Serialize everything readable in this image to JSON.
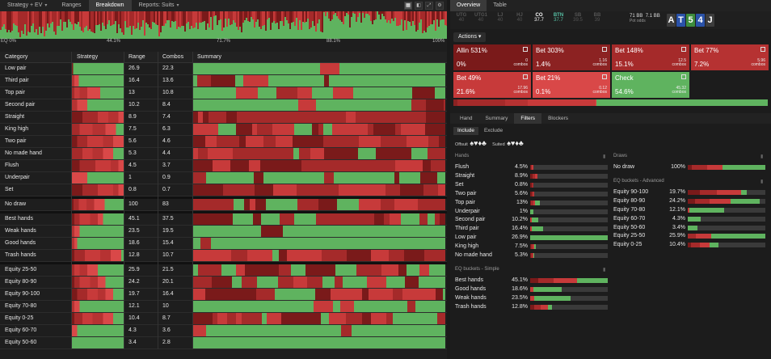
{
  "colors": {
    "allin": "#7a1a1a",
    "bet_big": "#a52a2a",
    "bet_mid": "#c73a3a",
    "bet_small": "#d94848",
    "check": "#5fb35f",
    "btn_teal": "#58c3a8",
    "card_ace": "#3c3c3c",
    "card_ten": "#2a52a8",
    "card_five": "#3d8c3d",
    "card_four": "#2a52a8",
    "card_jack": "#3c3c3c"
  },
  "top_tabs": [
    {
      "label": "Strategy + EV",
      "has_caret": true,
      "icon": "chevron-down-icon"
    },
    {
      "label": "Ranges"
    },
    {
      "label": "Breakdown",
      "active": true
    },
    {
      "label": "Reports: Suits",
      "has_caret": true,
      "icon": "chevron-down-icon"
    }
  ],
  "view_icons": [
    "grid-view-icon",
    "split-view-icon",
    "fullscreen-icon",
    "settings-icon"
  ],
  "equity_axis": [
    "EQ 0%",
    "44.1%",
    "71.7%",
    "88.1%",
    "100%"
  ],
  "table": {
    "headers": {
      "category": "Category",
      "strategy": "Strategy",
      "range": "Range %",
      "combos": "Combos",
      "summary": "Summary"
    },
    "groups": [
      [
        {
          "category": "Low pair",
          "range": "26.9",
          "combos": "22.3",
          "mix": [
            0.02,
            0,
            0,
            0,
            0,
            0.98
          ]
        },
        {
          "category": "Third pair",
          "range": "16.4",
          "combos": "13.6",
          "mix": [
            0,
            0,
            0,
            0.05,
            0.08,
            0.87
          ]
        },
        {
          "category": "Top pair",
          "range": "13",
          "combos": "10.8",
          "mix": [
            0,
            0.05,
            0.1,
            0.15,
            0.25,
            0.45
          ]
        },
        {
          "category": "Second pair",
          "range": "10.2",
          "combos": "8.4",
          "mix": [
            0,
            0,
            0,
            0.1,
            0.2,
            0.7
          ]
        },
        {
          "category": "Straight",
          "range": "8.9",
          "combos": "7.4",
          "mix": [
            0.2,
            0.3,
            0.2,
            0.2,
            0.1,
            0
          ]
        },
        {
          "category": "King high",
          "range": "7.5",
          "combos": "6.3",
          "mix": [
            0,
            0.15,
            0.25,
            0.25,
            0.2,
            0.15
          ]
        },
        {
          "category": "Two pair",
          "range": "5.6",
          "combos": "4.6",
          "mix": [
            0.1,
            0.2,
            0.3,
            0.2,
            0.2,
            0
          ]
        },
        {
          "category": "No made hand",
          "range": "5.3",
          "combos": "4.4",
          "mix": [
            0,
            0.2,
            0.2,
            0.2,
            0.2,
            0.2
          ]
        },
        {
          "category": "Flush",
          "range": "4.5",
          "combos": "3.7",
          "mix": [
            0.15,
            0.3,
            0.3,
            0.15,
            0.1,
            0
          ]
        },
        {
          "category": "Underpair",
          "range": "1",
          "combos": "0.9",
          "mix": [
            0,
            0,
            0,
            0,
            0.3,
            0.7
          ]
        },
        {
          "category": "Set",
          "range": "0.8",
          "combos": "0.7",
          "mix": [
            0.2,
            0.3,
            0.3,
            0.1,
            0.1,
            0
          ]
        }
      ],
      [
        {
          "category": "No draw",
          "range": "100",
          "combos": "83",
          "mix": [
            0.03,
            0.1,
            0.15,
            0.15,
            0.2,
            0.37
          ]
        }
      ],
      [
        {
          "category": "Best hands",
          "range": "45.1",
          "combos": "37.5",
          "mix": [
            0.05,
            0.1,
            0.2,
            0.15,
            0.1,
            0.4
          ]
        },
        {
          "category": "Weak hands",
          "range": "23.5",
          "combos": "19.5",
          "mix": [
            0,
            0,
            0,
            0.05,
            0.1,
            0.85
          ]
        },
        {
          "category": "Good hands",
          "range": "18.6",
          "combos": "15.4",
          "mix": [
            0,
            0,
            0,
            0.05,
            0.05,
            0.9
          ]
        },
        {
          "category": "Trash hands",
          "range": "12.8",
          "combos": "10.7",
          "mix": [
            0.05,
            0.2,
            0.3,
            0.2,
            0.2,
            0.05
          ]
        }
      ],
      [
        {
          "category": "Equity 25-50",
          "range": "25.9",
          "combos": "21.5",
          "mix": [
            0,
            0.05,
            0.1,
            0.15,
            0.2,
            0.5
          ]
        },
        {
          "category": "Equity 80-90",
          "range": "24.2",
          "combos": "20.1",
          "mix": [
            0.05,
            0.1,
            0.2,
            0.15,
            0.15,
            0.35
          ]
        },
        {
          "category": "Equity 90-100",
          "range": "19.7",
          "combos": "16.4",
          "mix": [
            0.1,
            0.2,
            0.2,
            0.15,
            0.15,
            0.2
          ]
        },
        {
          "category": "Equity 70-80",
          "range": "12.1",
          "combos": "10",
          "mix": [
            0,
            0,
            0,
            0.05,
            0.1,
            0.85
          ]
        },
        {
          "category": "Equity 0-25",
          "range": "10.4",
          "combos": "8.7",
          "mix": [
            0.05,
            0.15,
            0.2,
            0.2,
            0.2,
            0.2
          ]
        },
        {
          "category": "Equity 60-70",
          "range": "4.3",
          "combos": "3.6",
          "mix": [
            0,
            0,
            0,
            0,
            0.1,
            0.9
          ]
        },
        {
          "category": "Equity 50-60",
          "range": "3.4",
          "combos": "2.8",
          "mix": [
            0,
            0,
            0,
            0,
            0,
            1
          ]
        }
      ]
    ]
  },
  "right_tabs": [
    {
      "label": "Overview",
      "active": true
    },
    {
      "label": "Table"
    }
  ],
  "positions": [
    {
      "name": "UTG",
      "value": "40"
    },
    {
      "name": "UTG1",
      "value": "40"
    },
    {
      "name": "LJ",
      "value": "40"
    },
    {
      "name": "HJ",
      "value": "40"
    },
    {
      "name": "CO",
      "value": "37.7",
      "active": true
    },
    {
      "name": "BTN",
      "value": "37.7",
      "btn": true
    },
    {
      "name": "SB",
      "value": "39.5"
    },
    {
      "name": "BB",
      "value": "39"
    }
  ],
  "pot": {
    "line1": "71 BB",
    "line1b": "7.1 BB",
    "line2": "Pot odds"
  },
  "board": [
    "A",
    "T",
    "5",
    "4",
    "J"
  ],
  "actions_label": "Actions",
  "actions": [
    {
      "label": "Allin 531%",
      "pct": "0%",
      "combos": "0",
      "unit": "combos",
      "color": "#7a1a1a"
    },
    {
      "label": "Bet 303%",
      "pct": "1.4%",
      "combos": "1.16",
      "unit": "combos",
      "color": "#8c2222"
    },
    {
      "label": "Bet 148%",
      "pct": "15.1%",
      "combos": "12.5",
      "unit": "combos",
      "color": "#a52a2a"
    },
    {
      "label": "Bet 77%",
      "pct": "7.2%",
      "combos": "5.96",
      "unit": "combos",
      "color": "#b63232"
    },
    {
      "label": "Bet 49%",
      "pct": "21.6%",
      "combos": "17.96",
      "unit": "combos",
      "color": "#c73a3a"
    },
    {
      "label": "Bet 21%",
      "pct": "0.1%",
      "combos": "0.12",
      "unit": "combos",
      "color": "#d94848"
    },
    {
      "label": "Check",
      "pct": "54.6%",
      "combos": "45.32",
      "unit": "combos",
      "color": "#5fb35f"
    }
  ],
  "action_bar": [
    0,
    1.4,
    15.1,
    7.2,
    21.6,
    0.1,
    54.6
  ],
  "sub_tabs": [
    {
      "label": "Hand"
    },
    {
      "label": "Summary"
    },
    {
      "label": "Filters",
      "active": true
    },
    {
      "label": "Blockers"
    }
  ],
  "include_exclude": [
    {
      "label": "Include",
      "active": true
    },
    {
      "label": "Exclude"
    }
  ],
  "suit_filters": {
    "offsuit_label": "Offsuit",
    "suited_label": "Suited",
    "glyphs": "♠♥♦♣"
  },
  "filters_left": [
    {
      "title": "Hands",
      "rows": [
        {
          "label": "Flush",
          "value": "4.5%",
          "fill": 0.045,
          "mix": [
            0.2,
            0.4,
            0.4,
            0
          ]
        },
        {
          "label": "Straight",
          "value": "8.9%",
          "fill": 0.089,
          "mix": [
            0.3,
            0.4,
            0.3,
            0
          ]
        },
        {
          "label": "Set",
          "value": "0.8%",
          "fill": 0.02,
          "mix": [
            0.5,
            0.5,
            0,
            0
          ]
        },
        {
          "label": "Two pair",
          "value": "5.6%",
          "fill": 0.056,
          "mix": [
            0.3,
            0.4,
            0.3,
            0
          ]
        },
        {
          "label": "Top pair",
          "value": "13%",
          "fill": 0.13,
          "mix": [
            0.1,
            0.2,
            0.2,
            0.5
          ]
        },
        {
          "label": "Underpair",
          "value": "1%",
          "fill": 0.02,
          "mix": [
            0,
            0,
            0,
            1
          ]
        },
        {
          "label": "Second pair",
          "value": "10.2%",
          "fill": 0.102,
          "mix": [
            0,
            0,
            0.2,
            0.8
          ]
        },
        {
          "label": "Third pair",
          "value": "16.4%",
          "fill": 0.164,
          "mix": [
            0,
            0,
            0.1,
            0.9
          ]
        },
        {
          "label": "Low pair",
          "value": "26.9%",
          "fill": 1.0,
          "mix": [
            0,
            0,
            0,
            1
          ]
        },
        {
          "label": "King high",
          "value": "7.5%",
          "fill": 0.075,
          "mix": [
            0.2,
            0.3,
            0.2,
            0.3
          ]
        },
        {
          "label": "No made hand",
          "value": "5.3%",
          "fill": 0.053,
          "mix": [
            0.2,
            0.3,
            0.3,
            0.2
          ]
        }
      ]
    },
    {
      "title": "EQ buckets - Simple",
      "rows": [
        {
          "label": "Best hands",
          "value": "45.1%",
          "fill": 1.0,
          "mix": [
            0.1,
            0.2,
            0.3,
            0.4
          ]
        },
        {
          "label": "Good hands",
          "value": "18.6%",
          "fill": 0.41,
          "mix": [
            0,
            0,
            0.1,
            0.9
          ]
        },
        {
          "label": "Weak hands",
          "value": "23.5%",
          "fill": 0.52,
          "mix": [
            0,
            0,
            0.1,
            0.9
          ]
        },
        {
          "label": "Trash hands",
          "value": "12.8%",
          "fill": 0.28,
          "mix": [
            0.2,
            0.3,
            0.3,
            0.2
          ]
        }
      ]
    }
  ],
  "filters_right": [
    {
      "title": "Draws",
      "rows": [
        {
          "label": "No draw",
          "value": "100%",
          "fill": 1.0,
          "mix": [
            0.05,
            0.2,
            0.2,
            0.55
          ]
        }
      ]
    },
    {
      "title": "EQ buckets - Advanced",
      "rows": [
        {
          "label": "Equity 90-100",
          "value": "19.7%",
          "fill": 0.76,
          "mix": [
            0.2,
            0.3,
            0.4,
            0.1
          ]
        },
        {
          "label": "Equity 80-90",
          "value": "24.2%",
          "fill": 0.93,
          "mix": [
            0.1,
            0.2,
            0.3,
            0.4
          ]
        },
        {
          "label": "Equity 70-80",
          "value": "12.1%",
          "fill": 0.47,
          "mix": [
            0,
            0,
            0.05,
            0.95
          ]
        },
        {
          "label": "Equity 60-70",
          "value": "4.3%",
          "fill": 0.17,
          "mix": [
            0,
            0,
            0,
            1
          ]
        },
        {
          "label": "Equity 50-60",
          "value": "3.4%",
          "fill": 0.13,
          "mix": [
            0,
            0,
            0,
            1
          ]
        },
        {
          "label": "Equity 25-50",
          "value": "25.9%",
          "fill": 1.0,
          "mix": [
            0,
            0.1,
            0.2,
            0.7
          ]
        },
        {
          "label": "Equity 0-25",
          "value": "10.4%",
          "fill": 0.4,
          "mix": [
            0.1,
            0.3,
            0.3,
            0.3
          ]
        }
      ]
    }
  ]
}
